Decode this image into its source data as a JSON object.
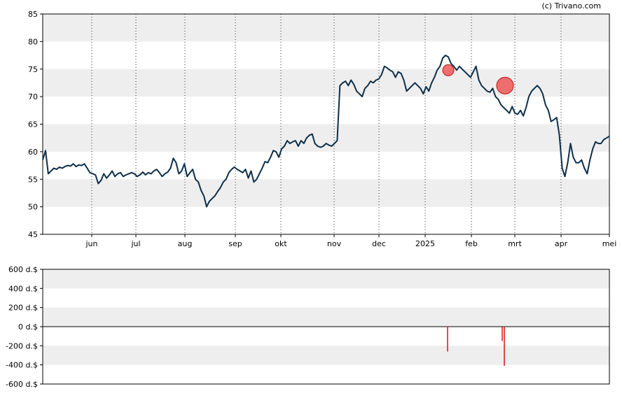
{
  "copyright": "(c) Trivano.com",
  "chart_data": [
    {
      "type": "line",
      "title": "",
      "ylim": [
        45,
        85
      ],
      "yticks": [
        "45",
        "50",
        "55",
        "60",
        "65",
        "70",
        "75",
        "80",
        "85"
      ],
      "month_labels": [
        "jun",
        "jul",
        "aug",
        "sep",
        "okt",
        "nov",
        "dec",
        "2025",
        "feb",
        "mrt",
        "apr",
        "mei"
      ],
      "grid": "horizontal bands + dotted monthly verticals",
      "line_color": "#0d2f4a",
      "series": [
        {
          "values": [
            58.5,
            60.2,
            56.0,
            56.5,
            57.0,
            56.8,
            57.2,
            57.0,
            57.3,
            57.5,
            57.4,
            57.8,
            57.3,
            57.6,
            57.5,
            57.8,
            57.0,
            56.2,
            56.0,
            55.8,
            54.2,
            54.8,
            56.0,
            55.2,
            55.8,
            56.5,
            55.5,
            56.0,
            56.2,
            55.5,
            55.8,
            56.0,
            56.2,
            56.0,
            55.5,
            55.8,
            56.3,
            55.8,
            56.2,
            56.0,
            56.5,
            56.8,
            56.2,
            55.5,
            56.0,
            56.3,
            57.0,
            58.8,
            58.0,
            56.0,
            56.5,
            57.8,
            55.5,
            56.2,
            56.8,
            55.0,
            54.5,
            53.0,
            52.0,
            50.0,
            51.0,
            51.5,
            52.0,
            52.8,
            53.5,
            54.5,
            55.0,
            56.2,
            56.8,
            57.2,
            56.8,
            56.5,
            56.2,
            56.8,
            55.2,
            56.5,
            54.5,
            55.0,
            56.0,
            57.0,
            58.2,
            58.0,
            59.0,
            60.2,
            60.0,
            59.0,
            60.5,
            61.0,
            62.0,
            61.5,
            61.8,
            62.0,
            61.0,
            62.0,
            61.5,
            62.5,
            63.0,
            63.2,
            61.5,
            61.0,
            60.8,
            61.0,
            61.5,
            61.2,
            61.0,
            61.5,
            62.0,
            72.0,
            72.5,
            72.8,
            72.0,
            73.0,
            72.2,
            71.0,
            70.5,
            70.0,
            71.5,
            72.0,
            72.8,
            72.5,
            73.0,
            73.2,
            74.0,
            75.5,
            75.2,
            74.8,
            74.5,
            73.5,
            74.5,
            74.2,
            73.0,
            71.0,
            71.5,
            72.0,
            72.5,
            72.0,
            71.5,
            70.5,
            71.8,
            71.0,
            72.5,
            73.5,
            74.8,
            75.5,
            77.0,
            77.5,
            77.2,
            76.0,
            75.5,
            74.8,
            75.5,
            75.0,
            74.5,
            74.0,
            73.5,
            74.5,
            75.5,
            73.0,
            72.0,
            71.5,
            71.0,
            70.8,
            71.5,
            70.0,
            69.5,
            68.5,
            68.0,
            67.5,
            67.0,
            68.2,
            67.0,
            66.8,
            67.5,
            66.5,
            68.0,
            70.0,
            71.0,
            71.5,
            72.0,
            71.5,
            70.5,
            68.5,
            67.5,
            65.5,
            65.8,
            66.2,
            63.0,
            57.0,
            55.5,
            58.0,
            61.5,
            59.0,
            58.0,
            58.0,
            58.5,
            57.0,
            56.0,
            58.5,
            60.5,
            61.8,
            61.5,
            61.5,
            62.2,
            62.5,
            62.8
          ]
        }
      ],
      "markers": [
        {
          "label": "",
          "value": 74.8,
          "color": "#ee2a2a",
          "size": "small"
        },
        {
          "label": "",
          "value": 72.0,
          "color": "#ee2a2a",
          "size": "large"
        }
      ]
    },
    {
      "type": "bar",
      "title": "",
      "ylim": [
        -600,
        600
      ],
      "yticks": [
        "600 d.$",
        "400 d.$",
        "200 d.$",
        "0 d.$",
        "-200 d.$",
        "-400 d.$",
        "-600 d.$"
      ],
      "bar_color": "#dd1111",
      "series": [
        {
          "values": [
            -260,
            -150,
            -410
          ]
        }
      ]
    }
  ]
}
